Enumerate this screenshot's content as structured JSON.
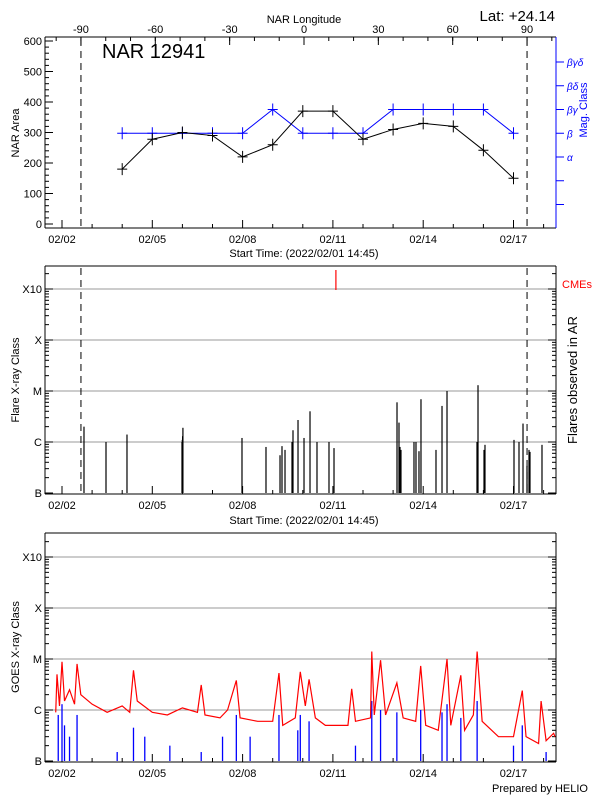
{
  "header": {
    "lat_label": "Lat: +24.14",
    "region_title": "NAR 12941"
  },
  "footer": "Prepared by HELIO",
  "colors": {
    "area": "#000000",
    "mag_class": "#0000ff",
    "cme": "#ff0000",
    "goes_long": "#ff0000",
    "goes_short": "#0000ff",
    "grid": "#999999"
  },
  "chart_data": [
    {
      "type": "line",
      "title": "NAR 12941",
      "xlabel": "Start Time: (2022/02/01 14:45)",
      "x2label": "NAR Longitude",
      "ylabel": "NAR Area",
      "y2label": "Mag. Class",
      "ylim": [
        0,
        600
      ],
      "yticks": [
        "0",
        "100",
        "200",
        "300",
        "400",
        "500",
        "600"
      ],
      "xticks": [
        "02/02",
        "02/05",
        "02/08",
        "02/11",
        "02/14",
        "02/17"
      ],
      "x2ticks": [
        "-90",
        "-60",
        "-30",
        "0",
        "30",
        "60",
        "90"
      ],
      "y2ticks": [
        "α",
        "β",
        "βγ",
        "βδ",
        "βγδ"
      ],
      "limb_longitudes": [
        -90,
        90
      ],
      "dates": [
        "02/04",
        "02/05",
        "02/06",
        "02/07",
        "02/08",
        "02/09",
        "02/10",
        "02/11",
        "02/12",
        "02/13",
        "02/14",
        "02/15",
        "02/16",
        "02/17"
      ],
      "series": [
        {
          "name": "NAR Area",
          "values": [
            180,
            278,
            300,
            290,
            220,
            260,
            370,
            370,
            278,
            310,
            330,
            320,
            242,
            150
          ]
        },
        {
          "name": "Mag. Class",
          "values": [
            "β",
            "β",
            "β",
            "β",
            "β",
            "βγ",
            "β",
            "β",
            "β",
            "βγ",
            "βγ",
            "βγ",
            "βγ",
            "β"
          ]
        }
      ]
    },
    {
      "type": "bar",
      "xlabel": "Start Time: (2022/02/01 14:45)",
      "ylabel": "Flare X-ray Class",
      "y2label": "Flares observed in AR",
      "yticks": [
        "B",
        "C",
        "M",
        "X",
        "X10"
      ],
      "xticks": [
        "02/02",
        "02/05",
        "02/08",
        "02/11",
        "02/14",
        "02/17"
      ],
      "cme_label": "CMEs",
      "cmes": [
        "02/11 02:24"
      ],
      "flares": [
        [
          "02/02 17:32",
          "C2.0"
        ],
        [
          "02/03 11:05",
          "C1.0"
        ],
        [
          "02/04 03:49",
          "C1.4"
        ],
        [
          "02/05 23:40",
          "C1.0"
        ],
        [
          "02/05 23:55",
          "C1.1"
        ],
        [
          "02/06 00:10",
          "C1.3"
        ],
        [
          "02/06 00:25",
          "C1.9"
        ],
        [
          "02/07 23:31",
          "C1.2"
        ],
        [
          "02/08 18:39",
          "B8.0"
        ],
        [
          "02/09 05:50",
          "B5.5"
        ],
        [
          "02/09 07:25",
          "B8.3"
        ],
        [
          "02/09 09:49",
          "B7.0"
        ],
        [
          "02/09 15:23",
          "C1.0"
        ],
        [
          "02/09 16:11",
          "C1.7"
        ],
        [
          "02/09 20:11",
          "C2.7"
        ],
        [
          "02/10 00:58",
          "C1.2"
        ],
        [
          "02/10 05:45",
          "C4.0"
        ],
        [
          "02/10 11:19",
          "C1.0"
        ],
        [
          "02/10 20:53",
          "C1.0"
        ],
        [
          "02/11 00:53",
          "B7.6"
        ],
        [
          "02/13 03:07",
          "C6.0"
        ],
        [
          "02/13 04:42",
          "C2.4"
        ],
        [
          "02/13 05:30",
          "B8.0"
        ],
        [
          "02/13 06:17",
          "B7.0"
        ],
        [
          "02/13 16:39",
          "C1.0"
        ],
        [
          "02/13 18:15",
          "C1.0"
        ],
        [
          "02/13 20:38",
          "B6.6"
        ],
        [
          "02/13 22:14",
          "C6.9"
        ],
        [
          "02/14 10:12",
          "B7.0"
        ],
        [
          "02/14 15:00",
          "C5.1"
        ],
        [
          "02/14 18:59",
          "M1.0"
        ],
        [
          "02/15 18:53",
          "C1.0"
        ],
        [
          "02/15 19:42",
          "M1.3"
        ],
        [
          "02/16 00:29",
          "B7.0"
        ],
        [
          "02/16 01:16",
          "B8.8"
        ],
        [
          "02/17 00:24",
          "C1.1"
        ],
        [
          "02/17 04:23",
          "C1.0"
        ],
        [
          "02/17 07:35",
          "C2.3"
        ],
        [
          "02/17 10:46",
          "B3.4"
        ],
        [
          "02/17 12:22",
          "B7.0"
        ],
        [
          "02/17 13:09",
          "B6.4"
        ],
        [
          "02/17 22:43",
          "B8.8"
        ]
      ]
    },
    {
      "type": "line",
      "ylabel": "GOES X-ray Class",
      "yticks": [
        "B",
        "C",
        "M",
        "X",
        "X10"
      ],
      "xticks": [
        "02/02",
        "02/05",
        "02/08",
        "02/11",
        "02/14",
        "02/17"
      ],
      "series": [
        {
          "color": "#ff0000",
          "points": [
            [
              "02/01 19:00",
              "B9"
            ],
            [
              "02/01 20:00",
              "C5"
            ],
            [
              "02/01 22:00",
              "C1.2"
            ],
            [
              "02/02 00:00",
              "C8.8"
            ],
            [
              "02/02 02:00",
              "C1.5"
            ],
            [
              "02/02 06:00",
              "C2.5"
            ],
            [
              "02/02 10:00",
              "C1.3"
            ],
            [
              "02/02 12:00",
              "C8"
            ],
            [
              "02/02 15:00",
              "C2"
            ],
            [
              "02/03 00:00",
              "C1.3"
            ],
            [
              "02/03 12:00",
              "B9"
            ],
            [
              "02/04 00:00",
              "C1.2"
            ],
            [
              "02/04 06:00",
              "B9"
            ],
            [
              "02/04 09:00",
              "C6"
            ],
            [
              "02/04 12:00",
              "C1.5"
            ],
            [
              "02/05 00:00",
              "B9"
            ],
            [
              "02/05 12:00",
              "B8"
            ],
            [
              "02/06 00:00",
              "C1.1"
            ],
            [
              "02/06 12:00",
              "B9"
            ],
            [
              "02/06 15:00",
              "C3.1"
            ],
            [
              "02/06 18:00",
              "B8"
            ],
            [
              "02/07 06:00",
              "B7"
            ],
            [
              "02/07 12:00",
              "C1.0"
            ],
            [
              "02/07 19:00",
              "C3.8"
            ],
            [
              "02/07 22:00",
              "B7"
            ],
            [
              "02/08 12:00",
              "B6"
            ],
            [
              "02/09 00:00",
              "B6"
            ],
            [
              "02/09 05:00",
              "C5.3"
            ],
            [
              "02/09 08:00",
              "B5"
            ],
            [
              "02/09 18:00",
              "B7"
            ],
            [
              "02/09 22:00",
              "C5.6"
            ],
            [
              "02/10 02:00",
              "C1.2"
            ],
            [
              "02/10 05:00",
              "C4"
            ],
            [
              "02/10 10:00",
              "B7"
            ],
            [
              "02/10 18:00",
              "B5"
            ],
            [
              "02/11 12:00",
              "B5"
            ],
            [
              "02/11 15:00",
              "C2.6"
            ],
            [
              "02/11 18:00",
              "B6"
            ],
            [
              "02/12 06:00",
              "B7"
            ],
            [
              "02/12 07:00",
              "M1.4"
            ],
            [
              "02/12 09:00",
              "B8"
            ],
            [
              "02/12 14:00",
              "C9.5"
            ],
            [
              "02/12 18:00",
              "B8"
            ],
            [
              "02/13 03:00",
              "C3.4"
            ],
            [
              "02/13 08:00",
              "B7"
            ],
            [
              "02/13 18:00",
              "B6"
            ],
            [
              "02/13 22:00",
              "C7.3"
            ],
            [
              "02/14 02:00",
              "B5"
            ],
            [
              "02/14 12:00",
              "B4"
            ],
            [
              "02/14 19:00",
              "M1.0"
            ],
            [
              "02/14 22:00",
              "B5"
            ],
            [
              "02/15 06:00",
              "C4.8"
            ],
            [
              "02/15 09:00",
              "B4"
            ],
            [
              "02/15 16:00",
              "B8"
            ],
            [
              "02/15 19:00",
              "M1.4"
            ],
            [
              "02/15 23:00",
              "B6"
            ],
            [
              "02/16 12:00",
              "B3"
            ],
            [
              "02/17 00:00",
              "B3"
            ],
            [
              "02/17 07:00",
              "C2.4"
            ],
            [
              "02/17 10:00",
              "B3"
            ],
            [
              "02/17 20:00",
              "B2.2"
            ],
            [
              "02/17 22:00",
              "C1.5"
            ],
            [
              "02/18 02:00",
              "B2.5"
            ],
            [
              "02/18 08:00",
              "B3.5"
            ],
            [
              "02/18 09:30",
              "B3"
            ]
          ]
        },
        {
          "color": "#0000ff",
          "points": [
            [
              "02/01 21:00",
              "B8"
            ],
            [
              "02/02 00:00",
              "C1.3"
            ],
            [
              "02/02 02:00",
              "B5"
            ],
            [
              "02/02 06:00",
              "B3"
            ],
            [
              "02/02 12:00",
              "B8"
            ],
            [
              "02/03 20:00",
              "B1.5"
            ],
            [
              "02/04 09:00",
              "B4.5"
            ],
            [
              "02/04 18:00",
              "B3"
            ],
            [
              "02/05 14:00",
              "B2"
            ],
            [
              "02/06 15:00",
              "B1.5"
            ],
            [
              "02/07 08:00",
              "B3"
            ],
            [
              "02/07 19:00",
              "B8"
            ],
            [
              "02/08 06:00",
              "B3"
            ],
            [
              "02/09 05:00",
              "B8"
            ],
            [
              "02/09 20:00",
              "B4"
            ],
            [
              "02/09 22:00",
              "B8"
            ],
            [
              "02/10 05:00",
              "B6"
            ],
            [
              "02/11 18:00",
              "B2"
            ],
            [
              "02/12 07:00",
              "C1.5"
            ],
            [
              "02/12 14:00",
              "C1.0"
            ],
            [
              "02/13 03:00",
              "B9"
            ],
            [
              "02/13 22:00",
              "C1.0"
            ],
            [
              "02/14 15:00",
              "B9"
            ],
            [
              "02/14 19:00",
              "C1.3"
            ],
            [
              "02/15 06:00",
              "B7"
            ],
            [
              "02/15 19:00",
              "C1.5"
            ],
            [
              "02/17 00:00",
              "B2"
            ],
            [
              "02/17 07:00",
              "B5"
            ],
            [
              "02/18 02:00",
              "B1.5"
            ]
          ]
        }
      ]
    }
  ]
}
